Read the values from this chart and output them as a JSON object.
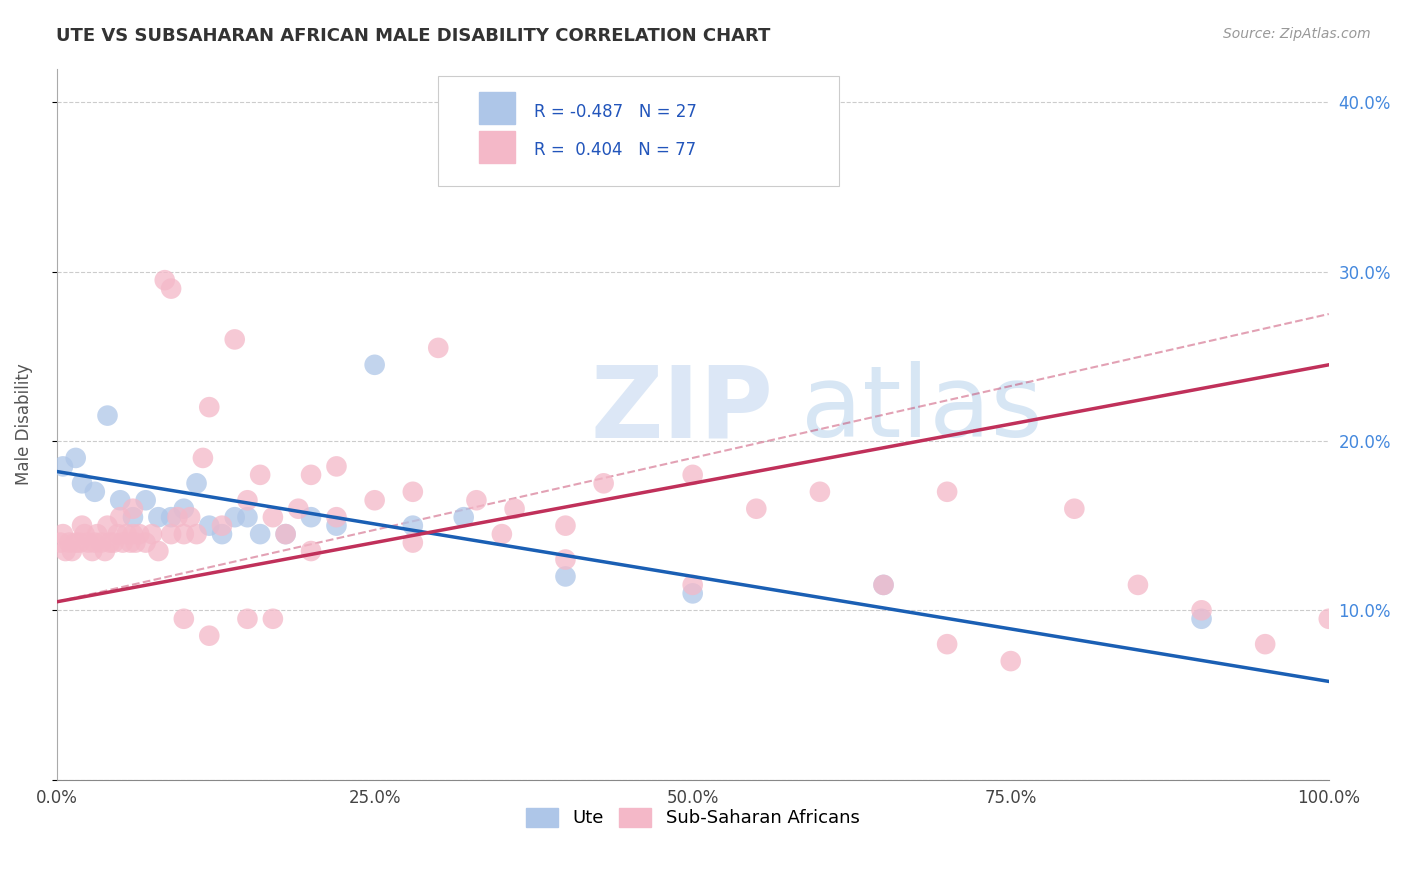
{
  "title": "UTE VS SUBSAHARAN AFRICAN MALE DISABILITY CORRELATION CHART",
  "source": "Source: ZipAtlas.com",
  "ylabel": "Male Disability",
  "watermark_part1": "ZIP",
  "watermark_part2": "atlas",
  "legend": {
    "ute": {
      "R": -0.487,
      "N": 27,
      "color": "#aec6e8",
      "line_color": "#1a5fb4"
    },
    "subsaharan": {
      "R": 0.404,
      "N": 77,
      "color": "#f4b8c8",
      "line_color": "#c0305a"
    }
  },
  "ute_x": [
    0.5,
    1.5,
    2.0,
    3.0,
    4.0,
    5.0,
    6.0,
    7.0,
    8.0,
    9.0,
    10.0,
    11.0,
    12.0,
    13.0,
    14.0,
    15.0,
    16.0,
    18.0,
    20.0,
    22.0,
    25.0,
    28.0,
    32.0,
    40.0,
    50.0,
    65.0,
    90.0
  ],
  "ute_y": [
    18.5,
    19.0,
    17.5,
    17.0,
    21.5,
    16.5,
    15.5,
    16.5,
    15.5,
    15.5,
    16.0,
    17.5,
    15.0,
    14.5,
    15.5,
    15.5,
    14.5,
    14.5,
    15.5,
    15.0,
    24.5,
    15.0,
    15.5,
    12.0,
    11.0,
    11.5,
    9.5
  ],
  "sub_x": [
    0.3,
    0.5,
    0.7,
    1.0,
    1.2,
    1.5,
    1.8,
    2.0,
    2.2,
    2.5,
    2.8,
    3.0,
    3.2,
    3.5,
    3.8,
    4.0,
    4.2,
    4.5,
    4.8,
    5.0,
    5.2,
    5.5,
    5.8,
    6.0,
    6.2,
    6.5,
    7.0,
    7.5,
    8.0,
    8.5,
    9.0,
    9.5,
    10.0,
    10.5,
    11.0,
    11.5,
    12.0,
    13.0,
    14.0,
    15.0,
    16.0,
    17.0,
    18.0,
    19.0,
    20.0,
    22.0,
    25.0,
    28.0,
    30.0,
    33.0,
    36.0,
    40.0,
    43.0,
    50.0,
    55.0,
    60.0,
    65.0,
    70.0,
    75.0,
    80.0,
    85.0,
    90.0,
    95.0,
    100.0,
    40.0,
    17.0,
    28.0,
    10.0,
    22.0,
    15.0,
    9.0,
    12.0,
    6.0,
    20.0,
    35.0,
    50.0,
    70.0
  ],
  "sub_y": [
    14.0,
    14.5,
    13.5,
    14.0,
    13.5,
    14.0,
    14.0,
    15.0,
    14.5,
    14.0,
    13.5,
    14.0,
    14.5,
    14.0,
    13.5,
    15.0,
    14.0,
    14.0,
    14.5,
    15.5,
    14.0,
    14.5,
    14.0,
    14.5,
    14.0,
    14.5,
    14.0,
    14.5,
    13.5,
    29.5,
    29.0,
    15.5,
    14.5,
    15.5,
    14.5,
    19.0,
    22.0,
    15.0,
    26.0,
    16.5,
    18.0,
    15.5,
    14.5,
    16.0,
    18.0,
    18.5,
    16.5,
    17.0,
    25.5,
    16.5,
    16.0,
    13.0,
    17.5,
    18.0,
    16.0,
    17.0,
    11.5,
    17.0,
    7.0,
    16.0,
    11.5,
    10.0,
    8.0,
    9.5,
    15.0,
    9.5,
    14.0,
    9.5,
    15.5,
    9.5,
    14.5,
    8.5,
    16.0,
    13.5,
    14.5,
    11.5,
    8.0
  ],
  "xlim": [
    0,
    100
  ],
  "ylim": [
    0,
    42
  ],
  "ytick_vals": [
    0,
    10,
    20,
    30,
    40
  ],
  "ytick_labels_left": [
    "",
    "",
    "",
    "",
    ""
  ],
  "ytick_labels_right": [
    "",
    "10.0%",
    "20.0%",
    "30.0%",
    "40.0%"
  ],
  "xtick_vals": [
    0,
    25,
    50,
    75,
    100
  ],
  "xtick_labels": [
    "0.0%",
    "25.0%",
    "50.0%",
    "75.0%",
    "100.0%"
  ],
  "bg_color": "#ffffff",
  "grid_color": "#cccccc",
  "ute_line_start_y": 18.2,
  "ute_line_end_y": 5.8,
  "sub_line_start_y": 10.5,
  "sub_line_end_y": 24.5
}
